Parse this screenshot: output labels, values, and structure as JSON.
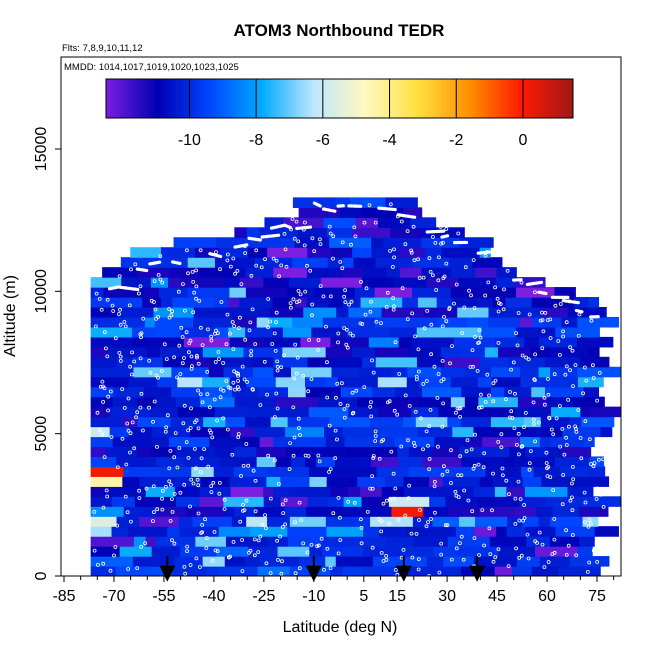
{
  "chart_data": {
    "type": "heatmap",
    "title": "ATOM3 Northbound TEDR",
    "subtitle_flights": "Flts: 7,8,9,10,11,12",
    "subtitle_dates": "MMDD: 1014,1017,1019,1020,1023,1025",
    "xlabel": "Latitude (deg N)",
    "ylabel": "Altitude (m)",
    "x_ticks": [
      -85,
      -70,
      -55,
      -40,
      -25,
      -10,
      5,
      15,
      30,
      45,
      60,
      75
    ],
    "y_ticks": [
      0,
      5000,
      10000,
      15000
    ],
    "xlim": [
      -85,
      80
    ],
    "ylim": [
      0,
      17500
    ],
    "colorbar": {
      "ticks": [
        -10,
        -8,
        -6,
        -4,
        -2,
        0
      ],
      "range": [
        -12.5,
        1.5
      ],
      "colors": [
        "#7a1fe0",
        "#0000b4",
        "#0046ff",
        "#00aaff",
        "#bfe6ff",
        "#fff8c0",
        "#ffe040",
        "#ff9000",
        "#ff1a00",
        "#a01818"
      ]
    },
    "background_value": -10.3,
    "cell_height_m": 350,
    "hot_spots": [
      {
        "lat": -71,
        "alt": 3700,
        "value": 0.5
      },
      {
        "lat": -71,
        "alt": 3200,
        "value": -3.5
      },
      {
        "lat": -72,
        "alt": 5000,
        "value": -4.5
      },
      {
        "lat": -74,
        "alt": 1800,
        "value": -4.8
      },
      {
        "lat": 18,
        "alt": 2300,
        "value": 0.2
      },
      {
        "lat": 16,
        "alt": 2600,
        "value": -4.0
      },
      {
        "lat": -15,
        "alt": 6700,
        "value": -5.0
      },
      {
        "lat": 11,
        "alt": 6800,
        "value": -4.5
      },
      {
        "lat": -54,
        "alt": 7200,
        "value": -6.5
      },
      {
        "lat": 32,
        "alt": 6200,
        "value": -6.2
      },
      {
        "lat": -44,
        "alt": 9800,
        "value": -7.0
      },
      {
        "lat": 3,
        "alt": 11600,
        "value": -7.2
      }
    ],
    "profile_markers_lat": [
      -54,
      -10,
      17,
      39
    ]
  }
}
